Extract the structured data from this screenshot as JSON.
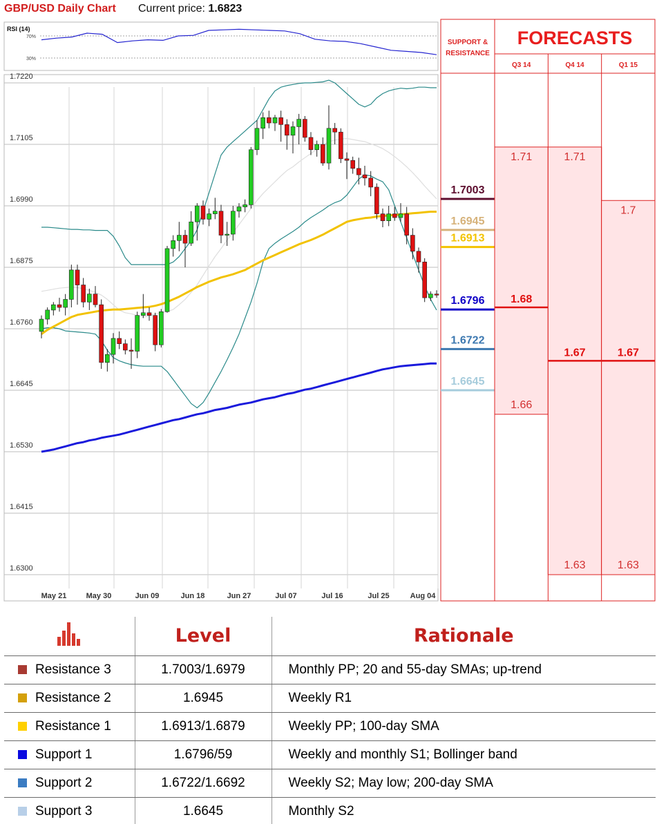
{
  "header": {
    "title": "GBP/USD Daily Chart",
    "price_label": "Current price:",
    "price_value": "1.6823"
  },
  "rsi": {
    "label": "RSI (14)",
    "levels": [
      "70%",
      "30%"
    ],
    "values": [
      63,
      66,
      68,
      75,
      73,
      58,
      61,
      63,
      62,
      70,
      71,
      80,
      81,
      82,
      81,
      80,
      79,
      74,
      64,
      61,
      60,
      56,
      50,
      44,
      42,
      40,
      36
    ]
  },
  "chart_data": {
    "type": "candlestick",
    "title": "GBP/USD Daily Chart",
    "ylim": [
      1.63,
      1.7255
    ],
    "y_ticks": [
      "1.7220",
      "1.7105",
      "1.6990",
      "1.6875",
      "1.6760",
      "1.6645",
      "1.6530",
      "1.6415",
      "1.6300"
    ],
    "x_ticks": [
      "May 21",
      "May 30",
      "Jun 09",
      "Jun 18",
      "Jun 27",
      "Jul 07",
      "Jul 16",
      "Jul 25",
      "Aug 04"
    ],
    "candles": [
      {
        "o": 1.6755,
        "h": 1.6785,
        "l": 1.6742,
        "c": 1.6778
      },
      {
        "o": 1.6778,
        "h": 1.68,
        "l": 1.6768,
        "c": 1.6795
      },
      {
        "o": 1.6795,
        "h": 1.681,
        "l": 1.6785,
        "c": 1.6805
      },
      {
        "o": 1.6805,
        "h": 1.6818,
        "l": 1.6792,
        "c": 1.68
      },
      {
        "o": 1.68,
        "h": 1.6825,
        "l": 1.6785,
        "c": 1.6815
      },
      {
        "o": 1.6815,
        "h": 1.688,
        "l": 1.68,
        "c": 1.687
      },
      {
        "o": 1.687,
        "h": 1.688,
        "l": 1.6805,
        "c": 1.6842
      },
      {
        "o": 1.6842,
        "h": 1.6855,
        "l": 1.68,
        "c": 1.681
      },
      {
        "o": 1.681,
        "h": 1.6835,
        "l": 1.6795,
        "c": 1.6825
      },
      {
        "o": 1.6825,
        "h": 1.684,
        "l": 1.68,
        "c": 1.6805
      },
      {
        "o": 1.6805,
        "h": 1.6815,
        "l": 1.6685,
        "c": 1.6697
      },
      {
        "o": 1.6697,
        "h": 1.6722,
        "l": 1.668,
        "c": 1.6712
      },
      {
        "o": 1.6712,
        "h": 1.6752,
        "l": 1.6695,
        "c": 1.6742
      },
      {
        "o": 1.6742,
        "h": 1.6755,
        "l": 1.6722,
        "c": 1.6732
      },
      {
        "o": 1.6732,
        "h": 1.674,
        "l": 1.6712,
        "c": 1.672
      },
      {
        "o": 1.672,
        "h": 1.6742,
        "l": 1.6685,
        "c": 1.6718
      },
      {
        "o": 1.6718,
        "h": 1.6792,
        "l": 1.6705,
        "c": 1.6785
      },
      {
        "o": 1.6785,
        "h": 1.6825,
        "l": 1.678,
        "c": 1.679
      },
      {
        "o": 1.679,
        "h": 1.68,
        "l": 1.6775,
        "c": 1.6785
      },
      {
        "o": 1.6785,
        "h": 1.679,
        "l": 1.6718,
        "c": 1.673
      },
      {
        "o": 1.673,
        "h": 1.6797,
        "l": 1.6725,
        "c": 1.6792
      },
      {
        "o": 1.6792,
        "h": 1.6915,
        "l": 1.679,
        "c": 1.691
      },
      {
        "o": 1.691,
        "h": 1.6935,
        "l": 1.6895,
        "c": 1.6925
      },
      {
        "o": 1.6925,
        "h": 1.696,
        "l": 1.6905,
        "c": 1.6935
      },
      {
        "o": 1.6935,
        "h": 1.6945,
        "l": 1.6875,
        "c": 1.692
      },
      {
        "o": 1.692,
        "h": 1.698,
        "l": 1.6915,
        "c": 1.696
      },
      {
        "o": 1.696,
        "h": 1.6995,
        "l": 1.6925,
        "c": 1.699
      },
      {
        "o": 1.699,
        "h": 1.7,
        "l": 1.6955,
        "c": 1.6965
      },
      {
        "o": 1.6965,
        "h": 1.6985,
        "l": 1.6952,
        "c": 1.6975
      },
      {
        "o": 1.6975,
        "h": 1.7005,
        "l": 1.6965,
        "c": 1.698
      },
      {
        "o": 1.698,
        "h": 1.6992,
        "l": 1.692,
        "c": 1.6935
      },
      {
        "o": 1.6935,
        "h": 1.696,
        "l": 1.6915,
        "c": 1.6937
      },
      {
        "o": 1.6937,
        "h": 1.699,
        "l": 1.6925,
        "c": 1.698
      },
      {
        "o": 1.698,
        "h": 1.6995,
        "l": 1.6968,
        "c": 1.6988
      },
      {
        "o": 1.6988,
        "h": 1.7002,
        "l": 1.6978,
        "c": 1.6992
      },
      {
        "o": 1.6992,
        "h": 1.71,
        "l": 1.6985,
        "c": 1.7095
      },
      {
        "o": 1.7095,
        "h": 1.715,
        "l": 1.7085,
        "c": 1.7135
      },
      {
        "o": 1.7135,
        "h": 1.7165,
        "l": 1.7115,
        "c": 1.7155
      },
      {
        "o": 1.7155,
        "h": 1.7168,
        "l": 1.7135,
        "c": 1.7145
      },
      {
        "o": 1.7145,
        "h": 1.716,
        "l": 1.713,
        "c": 1.7155
      },
      {
        "o": 1.7155,
        "h": 1.7168,
        "l": 1.711,
        "c": 1.7142
      },
      {
        "o": 1.7142,
        "h": 1.7152,
        "l": 1.7095,
        "c": 1.7122
      },
      {
        "o": 1.7122,
        "h": 1.7148,
        "l": 1.7088,
        "c": 1.7138
      },
      {
        "o": 1.7138,
        "h": 1.7162,
        "l": 1.7105,
        "c": 1.7152
      },
      {
        "o": 1.7152,
        "h": 1.7158,
        "l": 1.711,
        "c": 1.7118
      },
      {
        "o": 1.7118,
        "h": 1.7128,
        "l": 1.7085,
        "c": 1.7095
      },
      {
        "o": 1.7095,
        "h": 1.7112,
        "l": 1.7082,
        "c": 1.7105
      },
      {
        "o": 1.7105,
        "h": 1.7118,
        "l": 1.7065,
        "c": 1.707
      },
      {
        "o": 1.707,
        "h": 1.7178,
        "l": 1.7058,
        "c": 1.7135
      },
      {
        "o": 1.7135,
        "h": 1.7145,
        "l": 1.7105,
        "c": 1.7128
      },
      {
        "o": 1.7128,
        "h": 1.7135,
        "l": 1.707,
        "c": 1.7078
      },
      {
        "o": 1.7078,
        "h": 1.709,
        "l": 1.704,
        "c": 1.7075
      },
      {
        "o": 1.7075,
        "h": 1.7082,
        "l": 1.705,
        "c": 1.706
      },
      {
        "o": 1.706,
        "h": 1.708,
        "l": 1.703,
        "c": 1.7048
      },
      {
        "o": 1.7048,
        "h": 1.7065,
        "l": 1.7028,
        "c": 1.7042
      },
      {
        "o": 1.7042,
        "h": 1.7055,
        "l": 1.7008,
        "c": 1.7025
      },
      {
        "o": 1.7025,
        "h": 1.7032,
        "l": 1.6965,
        "c": 1.6975
      },
      {
        "o": 1.6975,
        "h": 1.6985,
        "l": 1.695,
        "c": 1.6962
      },
      {
        "o": 1.6962,
        "h": 1.699,
        "l": 1.6952,
        "c": 1.6975
      },
      {
        "o": 1.6975,
        "h": 1.6988,
        "l": 1.6962,
        "c": 1.6968
      },
      {
        "o": 1.6968,
        "h": 1.6995,
        "l": 1.696,
        "c": 1.6975
      },
      {
        "o": 1.6975,
        "h": 1.6988,
        "l": 1.6918,
        "c": 1.6935
      },
      {
        "o": 1.6935,
        "h": 1.6948,
        "l": 1.689,
        "c": 1.6905
      },
      {
        "o": 1.6905,
        "h": 1.6912,
        "l": 1.6865,
        "c": 1.6885
      },
      {
        "o": 1.6885,
        "h": 1.6892,
        "l": 1.681,
        "c": 1.6818
      },
      {
        "o": 1.6818,
        "h": 1.683,
        "l": 1.6812,
        "c": 1.6825
      },
      {
        "o": 1.6825,
        "h": 1.6832,
        "l": 1.6818,
        "c": 1.6823
      }
    ],
    "sma55": [
      1.675,
      1.6758,
      1.6764,
      1.677,
      1.6776,
      1.6782,
      1.6786,
      1.6788,
      1.679,
      1.6792,
      1.6794,
      1.6795,
      1.6796,
      1.6796,
      1.6797,
      1.6798,
      1.6799,
      1.68,
      1.6801,
      1.6803,
      1.6806,
      1.681,
      1.6815,
      1.682,
      1.6826,
      1.6832,
      1.6838,
      1.6843,
      1.6848,
      1.6852,
      1.6856,
      1.6859,
      1.6862,
      1.6866,
      1.687,
      1.6876,
      1.6882,
      1.6888,
      1.6893,
      1.6898,
      1.6903,
      1.6908,
      1.6913,
      1.6918,
      1.6922,
      1.6926,
      1.6931,
      1.6936,
      1.6942,
      1.6948,
      1.6954,
      1.696,
      1.6963,
      1.6965,
      1.6967,
      1.6968,
      1.697,
      1.6971,
      1.6972,
      1.6973,
      1.6974,
      1.6975,
      1.6976,
      1.6977,
      1.6978,
      1.6979,
      1.6979
    ],
    "sma200": [
      1.653,
      1.6532,
      1.6534,
      1.6537,
      1.654,
      1.6543,
      1.6546,
      1.6548,
      1.6551,
      1.6553,
      1.6556,
      1.6558,
      1.656,
      1.6562,
      1.6565,
      1.6568,
      1.6571,
      1.6574,
      1.6577,
      1.658,
      1.6583,
      1.6586,
      1.6589,
      1.6591,
      1.6594,
      1.6597,
      1.66,
      1.6602,
      1.6605,
      1.6608,
      1.661,
      1.6612,
      1.6615,
      1.6618,
      1.662,
      1.6622,
      1.6625,
      1.6628,
      1.663,
      1.6632,
      1.6635,
      1.6638,
      1.664,
      1.6643,
      1.6646,
      1.6648,
      1.6651,
      1.6654,
      1.6657,
      1.666,
      1.6663,
      1.6666,
      1.6669,
      1.6672,
      1.6675,
      1.6678,
      1.6681,
      1.6684,
      1.6686,
      1.6688,
      1.669,
      1.6691,
      1.6692,
      1.6693,
      1.6694,
      1.6695,
      1.6695
    ],
    "sma20": [
      1.683,
      1.6832,
      1.6834,
      1.6836,
      1.6837,
      1.6838,
      1.6837,
      1.6835,
      1.6832,
      1.6828,
      1.6823,
      1.6815,
      1.6805,
      1.6795,
      1.679,
      1.6788,
      1.6785,
      1.6782,
      1.6784,
      1.6788,
      1.679,
      1.6792,
      1.6796,
      1.6805,
      1.6815,
      1.6828,
      1.6842,
      1.686,
      1.6878,
      1.6895,
      1.691,
      1.6926,
      1.694,
      1.6955,
      1.697,
      1.6985,
      1.7,
      1.7013,
      1.7024,
      1.7035,
      1.7046,
      1.7056,
      1.7063,
      1.7072,
      1.708,
      1.7088,
      1.7096,
      1.7104,
      1.711,
      1.7113,
      1.7115,
      1.7116,
      1.7114,
      1.7112,
      1.711,
      1.7106,
      1.7102,
      1.7097,
      1.709,
      1.7082,
      1.7073,
      1.7063,
      1.7052,
      1.704,
      1.7027,
      1.7015,
      1.7003
    ],
    "boll_upper": [
      1.695,
      1.695,
      1.6949,
      1.6948,
      1.6947,
      1.6946,
      1.6946,
      1.6945,
      1.6945,
      1.6944,
      1.6944,
      1.6944,
      1.6933,
      1.6915,
      1.6893,
      1.688,
      1.688,
      1.688,
      1.688,
      1.688,
      1.688,
      1.688,
      1.6885,
      1.6895,
      1.691,
      1.6925,
      1.6945,
      1.698,
      1.7015,
      1.705,
      1.7085,
      1.71,
      1.711,
      1.712,
      1.713,
      1.714,
      1.715,
      1.717,
      1.719,
      1.7205,
      1.7212,
      1.7215,
      1.7217,
      1.7219,
      1.722,
      1.722,
      1.7221,
      1.7222,
      1.7225,
      1.722,
      1.721,
      1.72,
      1.719,
      1.718,
      1.7175,
      1.718,
      1.7192,
      1.72,
      1.7205,
      1.7208,
      1.721,
      1.7209,
      1.721,
      1.7212,
      1.7212,
      1.7211,
      1.7211
    ],
    "boll_lower": [
      1.676,
      1.6762,
      1.6762,
      1.676,
      1.6756,
      1.6755,
      1.6754,
      1.6753,
      1.6752,
      1.675,
      1.6738,
      1.672,
      1.6706,
      1.67,
      1.6696,
      1.6693,
      1.6691,
      1.669,
      1.669,
      1.669,
      1.669,
      1.668,
      1.6665,
      1.665,
      1.6635,
      1.662,
      1.6612,
      1.6622,
      1.664,
      1.666,
      1.668,
      1.6702,
      1.6725,
      1.675,
      1.678,
      1.681,
      1.6845,
      1.6885,
      1.691,
      1.692,
      1.6928,
      1.6935,
      1.6942,
      1.695,
      1.696,
      1.6968,
      1.6975,
      1.6982,
      1.699,
      1.6996,
      1.7,
      1.701,
      1.7025,
      1.704,
      1.7048,
      1.7046,
      1.704,
      1.7035,
      1.702,
      1.699,
      1.696,
      1.693,
      1.69,
      1.687,
      1.684,
      1.6815,
      1.6795
    ],
    "sr_title": "SUPPORT & RESISTANCE",
    "sr_levels": [
      {
        "value": "1.7003",
        "color": "#5d0d2e"
      },
      {
        "value": "1.6945",
        "color": "#d6b27a"
      },
      {
        "value": "1.6913",
        "color": "#f3c300"
      },
      {
        "value": "1.6796",
        "color": "#0f00c8"
      },
      {
        "value": "1.6722",
        "color": "#3c78b0"
      },
      {
        "value": "1.6645",
        "color": "#a6ccdc"
      }
    ],
    "forecasts": {
      "title": "FORECASTS",
      "columns": [
        {
          "label": "Q3 14",
          "high": "1.71",
          "mid": "1.68",
          "low": "1.66",
          "high_v": 1.71,
          "mid_v": 1.68,
          "low_v": 1.66
        },
        {
          "label": "Q4 14",
          "high": "1.71",
          "mid": "1.67",
          "low": "1.63",
          "high_v": 1.71,
          "mid_v": 1.67,
          "low_v": 1.63
        },
        {
          "label": "Q1 15",
          "high": "1.7",
          "mid": "1.67",
          "low": "1.63",
          "high_v": 1.7,
          "mid_v": 1.67,
          "low_v": 1.63
        }
      ]
    }
  },
  "table": {
    "headers": [
      "Level",
      "Rationale"
    ],
    "rows": [
      {
        "color": "#a83a32",
        "name": "Resistance 3",
        "level": "1.7003/1.6979",
        "rationale": "Monthly PP; 20 and 55-day SMAs; up-trend"
      },
      {
        "color": "#d4a00a",
        "name": "Resistance 2",
        "level": "1.6945",
        "rationale": "Weekly R1"
      },
      {
        "color": "#ffd000",
        "name": "Resistance 1",
        "level": "1.6913/1.6879",
        "rationale": "Weekly PP; 100-day SMA"
      },
      {
        "color": "#0a0ae0",
        "name": "Support 1",
        "level": "1.6796/59",
        "rationale": "Weekly and monthly S1; Bollinger band"
      },
      {
        "color": "#3b7cc2",
        "name": "Support 2",
        "level": "1.6722/1.6692",
        "rationale": "Weekly S2; May low; 200-day SMA"
      },
      {
        "color": "#b8cfe8",
        "name": "Support 3",
        "level": "1.6645",
        "rationale": "Monthly S2"
      }
    ]
  }
}
